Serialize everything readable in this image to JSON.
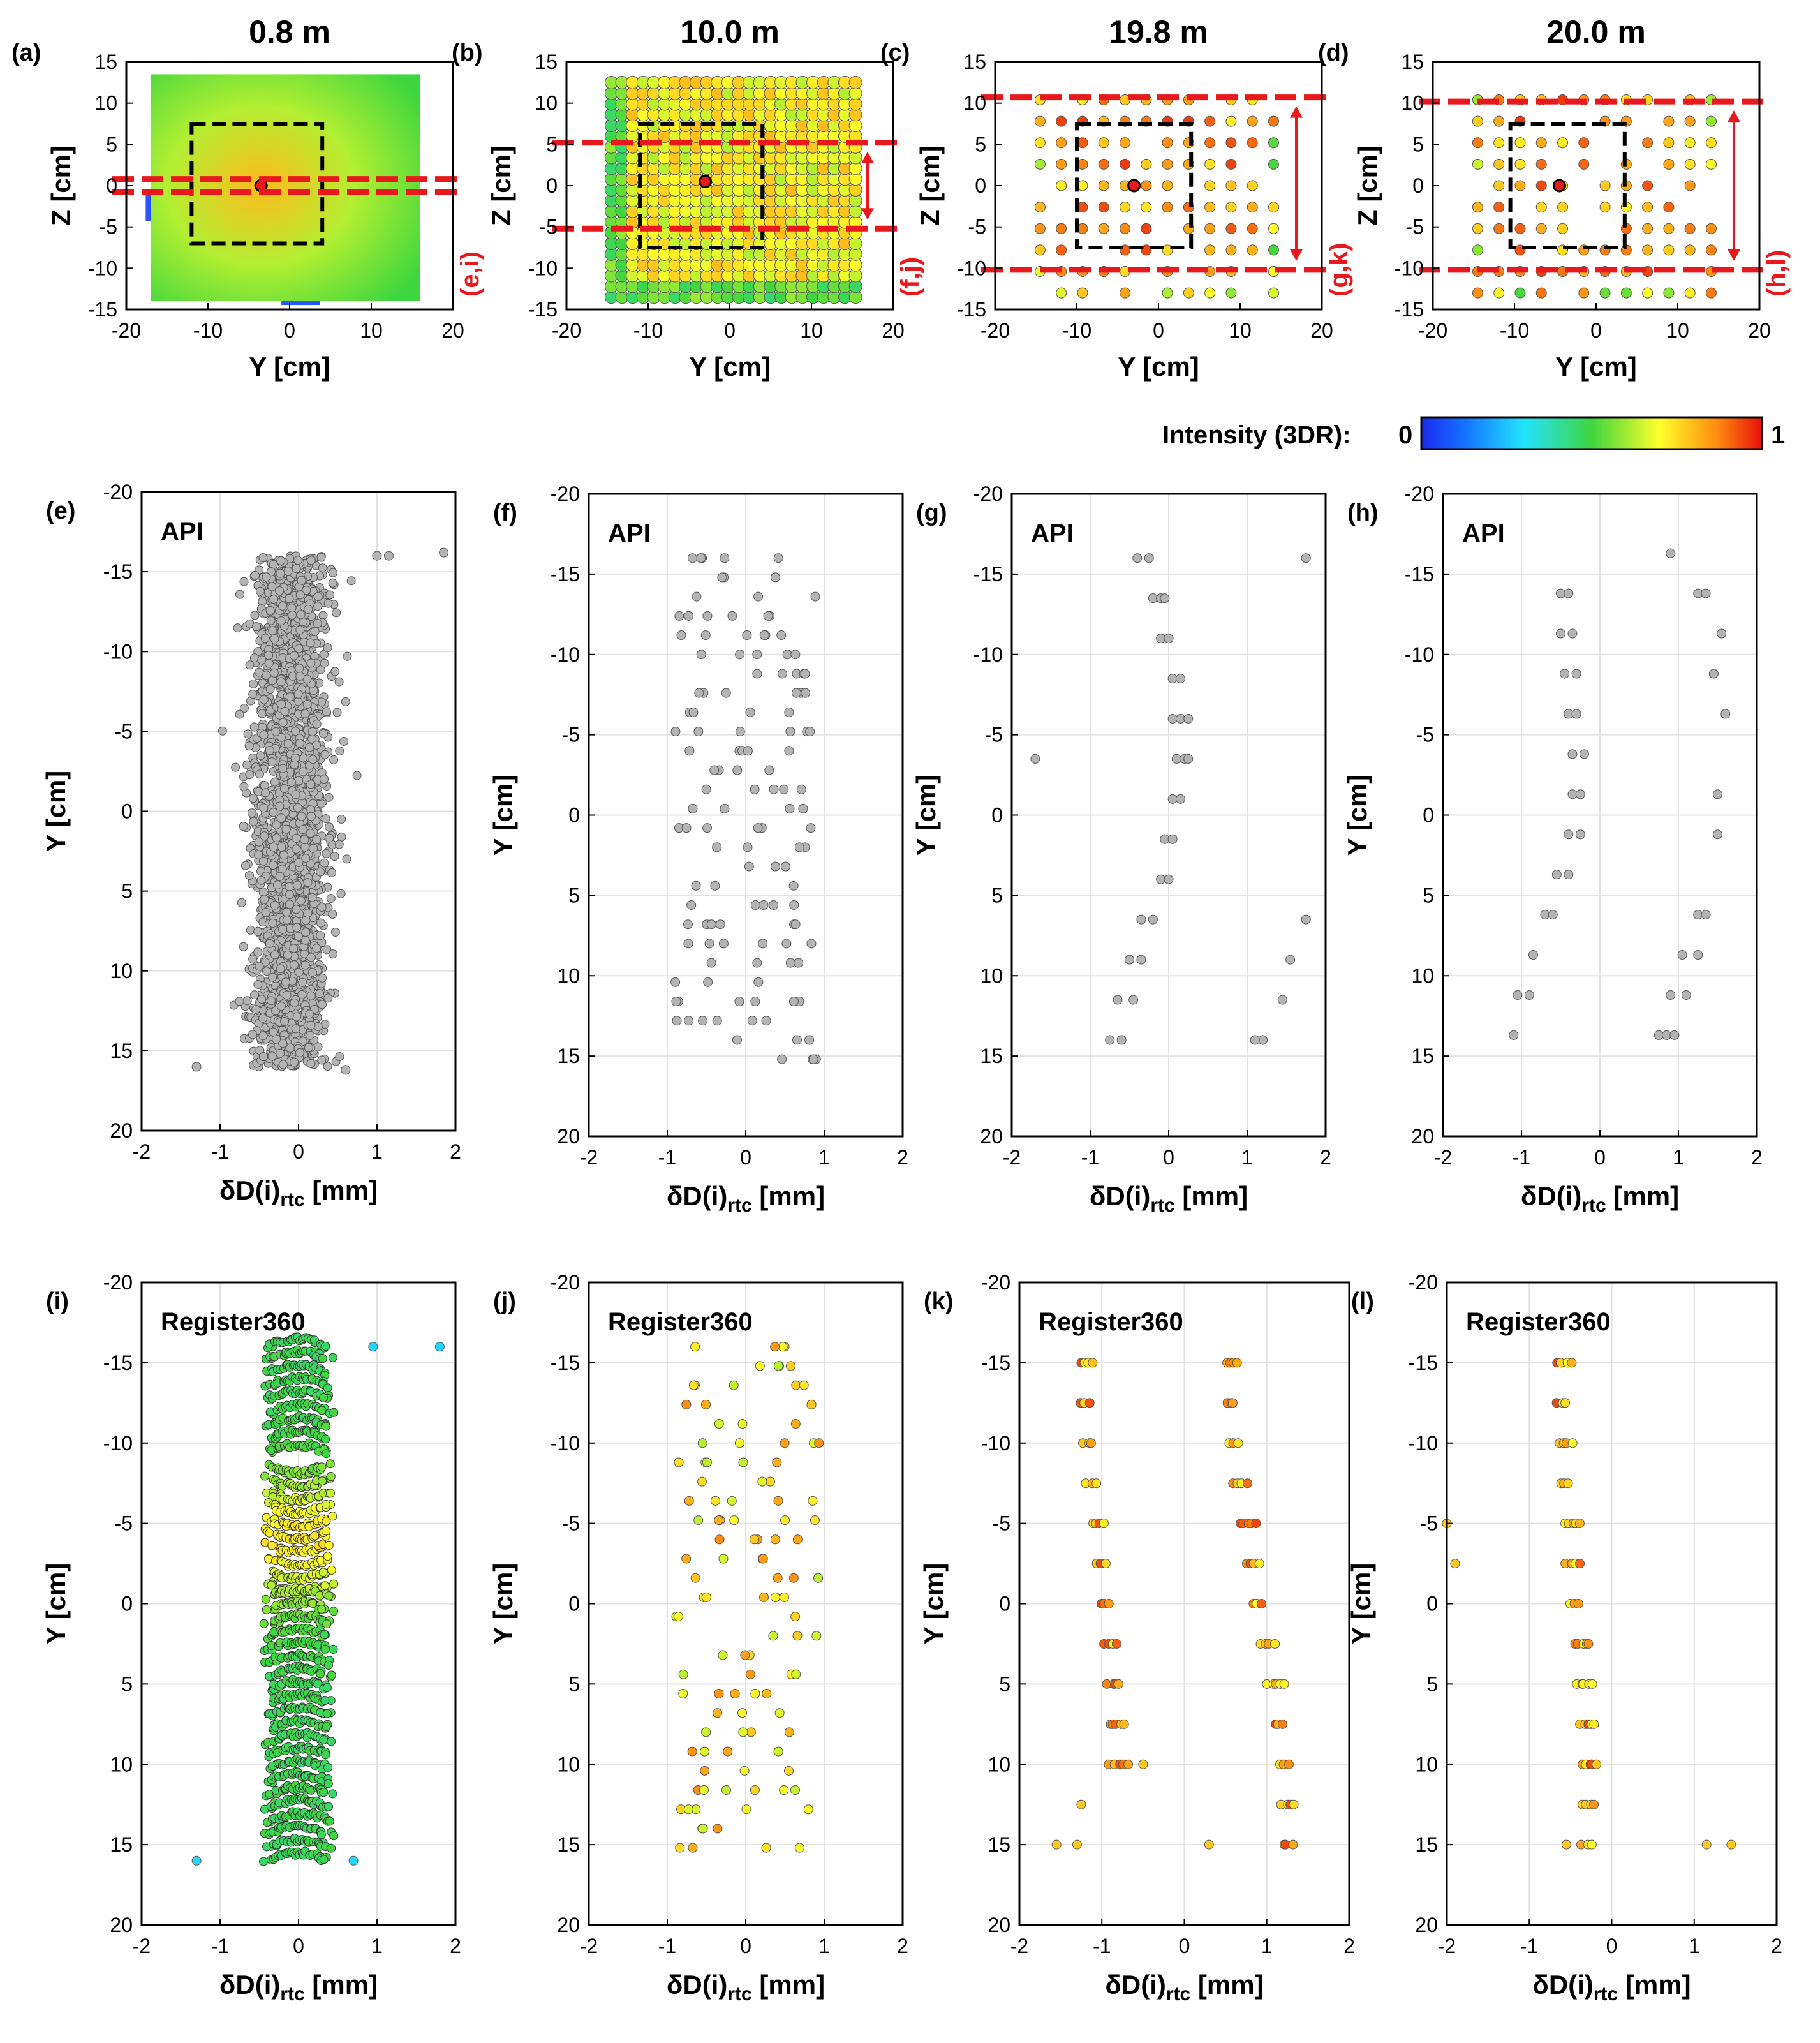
{
  "figure": {
    "colorbar": {
      "label": "Intensity (3DR):",
      "min_label": "0",
      "max_label": "1"
    },
    "colors": {
      "marker_gray": "#b4b4b4",
      "red_line": "#e8181c",
      "roi_box": "#000000",
      "grid": "#e2e2e2"
    }
  },
  "chart_data": [
    {
      "id": "a",
      "panel_label": "(a)",
      "title": "0.8 m",
      "type": "scatter",
      "xlabel": "Y [cm]",
      "ylabel": "Z [cm]",
      "xlim": [
        -20,
        20
      ],
      "ylim": [
        -15,
        15
      ],
      "xticks": [
        "-20",
        "-10",
        "0",
        "10",
        "20"
      ],
      "yticks": [
        "15",
        "10",
        "5",
        "0",
        "-5",
        "-10",
        "-15"
      ],
      "point_cloud": {
        "y_range": [
          -17,
          16
        ],
        "z_range": [
          -14,
          13.5
        ],
        "intensity_center": 0.8,
        "intensity_edge": 0.5
      },
      "roi_box": {
        "y": [
          -12,
          4
        ],
        "z": [
          -7,
          7.5
        ]
      },
      "section_lines_z": [
        -0.8,
        0.8
      ],
      "section_label": "(e,i)",
      "marker": {
        "y": -3.5,
        "z": 0
      }
    },
    {
      "id": "b",
      "panel_label": "(b)",
      "title": "10.0 m",
      "type": "scatter",
      "xlabel": "Y [cm]",
      "ylabel": "Z [cm]",
      "xlim": [
        -20,
        20
      ],
      "ylim": [
        -15,
        15
      ],
      "xticks": [
        "-20",
        "-10",
        "0",
        "10",
        "20"
      ],
      "yticks": [
        "15",
        "10",
        "5",
        "0",
        "-5",
        "-10",
        "-15"
      ],
      "grid_points": {
        "y_start": -14.5,
        "y_end": 16,
        "y_step": 1.3,
        "z_start": -13.5,
        "z_end": 12.5,
        "z_step": 1.3
      },
      "roi_box": {
        "y": [
          -11,
          4
        ],
        "z": [
          -7.5,
          7.5
        ]
      },
      "section_lines_z": [
        -5.2,
        5.2
      ],
      "section_label": "(f,j)",
      "marker": {
        "y": -3,
        "z": 0.5
      }
    },
    {
      "id": "c",
      "panel_label": "(c)",
      "title": "19.8 m",
      "type": "scatter",
      "xlabel": "Y [cm]",
      "ylabel": "Z [cm]",
      "xlim": [
        -20,
        20
      ],
      "ylim": [
        -15,
        15
      ],
      "xticks": [
        "-20",
        "-10",
        "0",
        "10",
        "20"
      ],
      "yticks": [
        "15",
        "10",
        "5",
        "0",
        "-5",
        "-10",
        "-15"
      ],
      "grid_points": {
        "y_start": -14.5,
        "y_end": 15,
        "y_step": 2.6,
        "z_start": -13,
        "z_end": 12.5,
        "z_step": 2.6
      },
      "roi_box": {
        "y": [
          -10,
          4
        ],
        "z": [
          -7.5,
          7.5
        ]
      },
      "section_lines_z": [
        -10.2,
        10.7
      ],
      "section_label": "(g,k)",
      "marker": {
        "y": -3,
        "z": 0
      }
    },
    {
      "id": "d",
      "panel_label": "(d)",
      "title": "20.0 m",
      "type": "scatter",
      "xlabel": "Y [cm]",
      "ylabel": "Z [cm]",
      "xlim": [
        -20,
        20
      ],
      "ylim": [
        -15,
        15
      ],
      "xticks": [
        "-20",
        "-10",
        "0",
        "10",
        "20"
      ],
      "yticks": [
        "15",
        "10",
        "5",
        "0",
        "-5",
        "-10",
        "-15"
      ],
      "grid_points": {
        "y_start": -14.5,
        "y_end": 15,
        "y_step": 2.6,
        "z_start": -13,
        "z_end": 12.5,
        "z_step": 2.6
      },
      "roi_box": {
        "y": [
          -10.5,
          3.5
        ],
        "z": [
          -7.5,
          7.5
        ]
      },
      "section_lines_z": [
        -10.2,
        10.2
      ],
      "section_label": "(h,l)",
      "marker": {
        "y": -4.5,
        "z": 0
      }
    },
    {
      "id": "e",
      "panel_label": "(e)",
      "inner_title": "API",
      "type": "scatter",
      "xlabel": "δD(i)",
      "xlabel_sub": "rtc",
      "xlabel_unit": " [mm]",
      "ylabel": "Y [cm]",
      "xlim": [
        -2,
        2
      ],
      "ylim": [
        -20,
        20
      ],
      "xticks": [
        "-2",
        "-1",
        "0",
        "1",
        "2"
      ],
      "yticks": [
        "-20",
        "-15",
        "-10",
        "-5",
        "0",
        "5",
        "10",
        "15",
        "20"
      ],
      "band": {
        "y_range": [
          -16,
          16
        ],
        "center": -0.1,
        "halfwidth": 0.5,
        "n_points": 2600
      },
      "extra_points": [
        [
          1.0,
          -16
        ],
        [
          1.15,
          -16
        ],
        [
          1.85,
          -16.2
        ],
        [
          -1.3,
          16
        ],
        [
          0.6,
          16.2
        ]
      ]
    },
    {
      "id": "f",
      "panel_label": "(f)",
      "inner_title": "API",
      "type": "scatter",
      "xlabel": "δD(i)",
      "xlabel_sub": "rtc",
      "xlabel_unit": " [mm]",
      "ylabel": "Y [cm]",
      "xlim": [
        -2,
        2
      ],
      "ylim": [
        -20,
        20
      ],
      "xticks": [
        "-2",
        "-1",
        "0",
        "1",
        "2"
      ],
      "yticks": [
        "-20",
        "-15",
        "-10",
        "-5",
        "0",
        "5",
        "10",
        "15",
        "20"
      ],
      "rows": {
        "y_start": -16,
        "y_step": 1.2,
        "n_rows": 27,
        "x_min": -0.9,
        "x_max": 0.9
      }
    },
    {
      "id": "g",
      "panel_label": "(g)",
      "inner_title": "API",
      "type": "scatter",
      "xlabel": "δD(i)",
      "xlabel_sub": "rtc",
      "xlabel_unit": " [mm]",
      "ylabel": "Y [cm]",
      "xlim": [
        -2,
        2
      ],
      "ylim": [
        -20,
        20
      ],
      "xticks": [
        "-2",
        "-1",
        "0",
        "1",
        "2"
      ],
      "yticks": [
        "-20",
        "-15",
        "-10",
        "-5",
        "0",
        "5",
        "10",
        "15",
        "20"
      ],
      "points": [
        [
          -0.4,
          -16
        ],
        [
          -0.25,
          -16
        ],
        [
          -0.2,
          -13.5
        ],
        [
          -0.1,
          -13.5
        ],
        [
          -0.05,
          -13.5
        ],
        [
          -0.1,
          -11
        ],
        [
          0,
          -11
        ],
        [
          0.05,
          -8.5
        ],
        [
          0.15,
          -8.5
        ],
        [
          0.05,
          -6
        ],
        [
          0.15,
          -6
        ],
        [
          0.25,
          -6
        ],
        [
          0.1,
          -3.5
        ],
        [
          0.2,
          -3.5
        ],
        [
          0.25,
          -3.5
        ],
        [
          0.05,
          -1
        ],
        [
          0.15,
          -1
        ],
        [
          -0.05,
          1.5
        ],
        [
          0.05,
          1.5
        ],
        [
          -0.1,
          4
        ],
        [
          0,
          4
        ],
        [
          -0.35,
          6.5
        ],
        [
          -0.2,
          6.5
        ],
        [
          -0.5,
          9
        ],
        [
          -0.35,
          9
        ],
        [
          -0.65,
          11.5
        ],
        [
          -0.45,
          11.5
        ],
        [
          -0.75,
          14
        ],
        [
          -0.6,
          14
        ],
        [
          1.75,
          -16
        ],
        [
          -1.7,
          -3.5
        ],
        [
          1.75,
          6.5
        ],
        [
          1.55,
          9
        ],
        [
          1.45,
          11.5
        ],
        [
          1.2,
          14
        ],
        [
          1.1,
          14
        ]
      ]
    },
    {
      "id": "h",
      "panel_label": "(h)",
      "inner_title": "API",
      "type": "scatter",
      "xlabel": "δD(i)",
      "xlabel_sub": "rtc",
      "xlabel_unit": " [mm]",
      "ylabel": "Y [cm]",
      "xlim": [
        -2,
        2
      ],
      "ylim": [
        -20,
        20
      ],
      "xticks": [
        "-2",
        "-1",
        "0",
        "1",
        "2"
      ],
      "yticks": [
        "-20",
        "-15",
        "-10",
        "-5",
        "0",
        "5",
        "10",
        "15",
        "20"
      ],
      "points": [
        [
          0.9,
          -16.3
        ],
        [
          -0.5,
          -13.8
        ],
        [
          -0.4,
          -13.8
        ],
        [
          1.25,
          -13.8
        ],
        [
          1.35,
          -13.8
        ],
        [
          -0.5,
          -11.3
        ],
        [
          -0.35,
          -11.3
        ],
        [
          1.55,
          -11.3
        ],
        [
          -0.45,
          -8.8
        ],
        [
          -0.3,
          -8.8
        ],
        [
          1.45,
          -8.8
        ],
        [
          -0.4,
          -6.3
        ],
        [
          -0.3,
          -6.3
        ],
        [
          1.6,
          -6.3
        ],
        [
          -0.35,
          -3.8
        ],
        [
          -0.2,
          -3.8
        ],
        [
          -0.35,
          -1.3
        ],
        [
          -0.25,
          -1.3
        ],
        [
          1.5,
          -1.3
        ],
        [
          -0.4,
          1.2
        ],
        [
          -0.25,
          1.2
        ],
        [
          1.5,
          1.2
        ],
        [
          -0.55,
          3.7
        ],
        [
          -0.4,
          3.7
        ],
        [
          -0.7,
          6.2
        ],
        [
          -0.6,
          6.2
        ],
        [
          1.25,
          6.2
        ],
        [
          1.35,
          6.2
        ],
        [
          -0.85,
          8.7
        ],
        [
          1.05,
          8.7
        ],
        [
          1.25,
          8.7
        ],
        [
          -1.05,
          11.2
        ],
        [
          -0.9,
          11.2
        ],
        [
          0.9,
          11.2
        ],
        [
          1.1,
          11.2
        ],
        [
          -1.1,
          13.7
        ],
        [
          0.75,
          13.7
        ],
        [
          0.85,
          13.7
        ],
        [
          0.95,
          13.7
        ]
      ]
    },
    {
      "id": "i",
      "panel_label": "(i)",
      "inner_title": "Register360",
      "type": "scatter",
      "xlabel": "δD(i)",
      "xlabel_sub": "rtc",
      "xlabel_unit": " [mm]",
      "ylabel": "Y [cm]",
      "xlim": [
        -2,
        2
      ],
      "ylim": [
        -20,
        20
      ],
      "xticks": [
        "-2",
        "-1",
        "0",
        "1",
        "2"
      ],
      "yticks": [
        "-20",
        "-15",
        "-10",
        "-5",
        "0",
        "5",
        "10",
        "15",
        "20"
      ],
      "arcs": {
        "y_range": [
          -16,
          16
        ],
        "n_arcs": 40,
        "points_per_arc": 28,
        "halfwidth": 0.45,
        "bend": 0.3
      },
      "extra_points": [
        [
          0.95,
          -16
        ],
        [
          1.8,
          -16
        ],
        [
          -1.3,
          16
        ],
        [
          0.7,
          16
        ]
      ]
    },
    {
      "id": "j",
      "panel_label": "(j)",
      "inner_title": "Register360",
      "type": "scatter",
      "xlabel": "δD(i)",
      "xlabel_sub": "rtc",
      "xlabel_unit": " [mm]",
      "ylabel": "Y [cm]",
      "xlim": [
        -2,
        2
      ],
      "ylim": [
        -20,
        20
      ],
      "xticks": [
        "-2",
        "-1",
        "0",
        "1",
        "2"
      ],
      "yticks": [
        "-20",
        "-15",
        "-10",
        "-5",
        "0",
        "5",
        "10",
        "15",
        "20"
      ],
      "rows": {
        "y_start": -16,
        "y_step": 1.2,
        "n_rows": 27,
        "x_min": -0.9,
        "x_max": 0.95
      }
    },
    {
      "id": "k",
      "panel_label": "(k)",
      "inner_title": "Register360",
      "type": "scatter",
      "xlabel": "δD(i)",
      "xlabel_sub": "rtc",
      "xlabel_unit": " [mm]",
      "ylabel": "Y [cm]",
      "xlim": [
        -2,
        2
      ],
      "ylim": [
        -20,
        20
      ],
      "xticks": [
        "-2",
        "-1",
        "0",
        "1",
        "2"
      ],
      "yticks": [
        "-20",
        "-15",
        "-10",
        "-5",
        "0",
        "5",
        "10",
        "15",
        "20"
      ],
      "columns": [
        {
          "x_top": -1.2,
          "x_bottom": -0.85,
          "y_start": -15,
          "y_end": 10
        },
        {
          "x_top": 0.55,
          "x_bottom": 1.25,
          "y_start": -15,
          "y_end": 15
        }
      ],
      "extra_points": [
        [
          -1.55,
          15
        ],
        [
          -1.3,
          15
        ],
        [
          -1.25,
          12.5
        ],
        [
          -0.5,
          10
        ],
        [
          0.3,
          15
        ]
      ]
    },
    {
      "id": "l",
      "panel_label": "(l)",
      "inner_title": "Register360",
      "type": "scatter",
      "xlabel": "δD(i)",
      "xlabel_sub": "rtc",
      "xlabel_unit": " [mm]",
      "ylabel": "Y [cm]",
      "xlim": [
        -2,
        2
      ],
      "ylim": [
        -20,
        20
      ],
      "xticks": [
        "-2",
        "-1",
        "0",
        "1",
        "2"
      ],
      "yticks": [
        "-20",
        "-15",
        "-10",
        "-5",
        "0",
        "5",
        "10",
        "15",
        "20"
      ],
      "columns": [
        {
          "x_top": -0.6,
          "x_bottom": -0.3,
          "y_start": -15,
          "y_end": 15,
          "x_bottom_right": 0.1
        }
      ],
      "extra_points": [
        [
          -2.0,
          -5
        ],
        [
          -1.9,
          -2.5
        ],
        [
          1.15,
          15
        ],
        [
          1.45,
          15
        ],
        [
          -0.55,
          15
        ]
      ]
    }
  ]
}
